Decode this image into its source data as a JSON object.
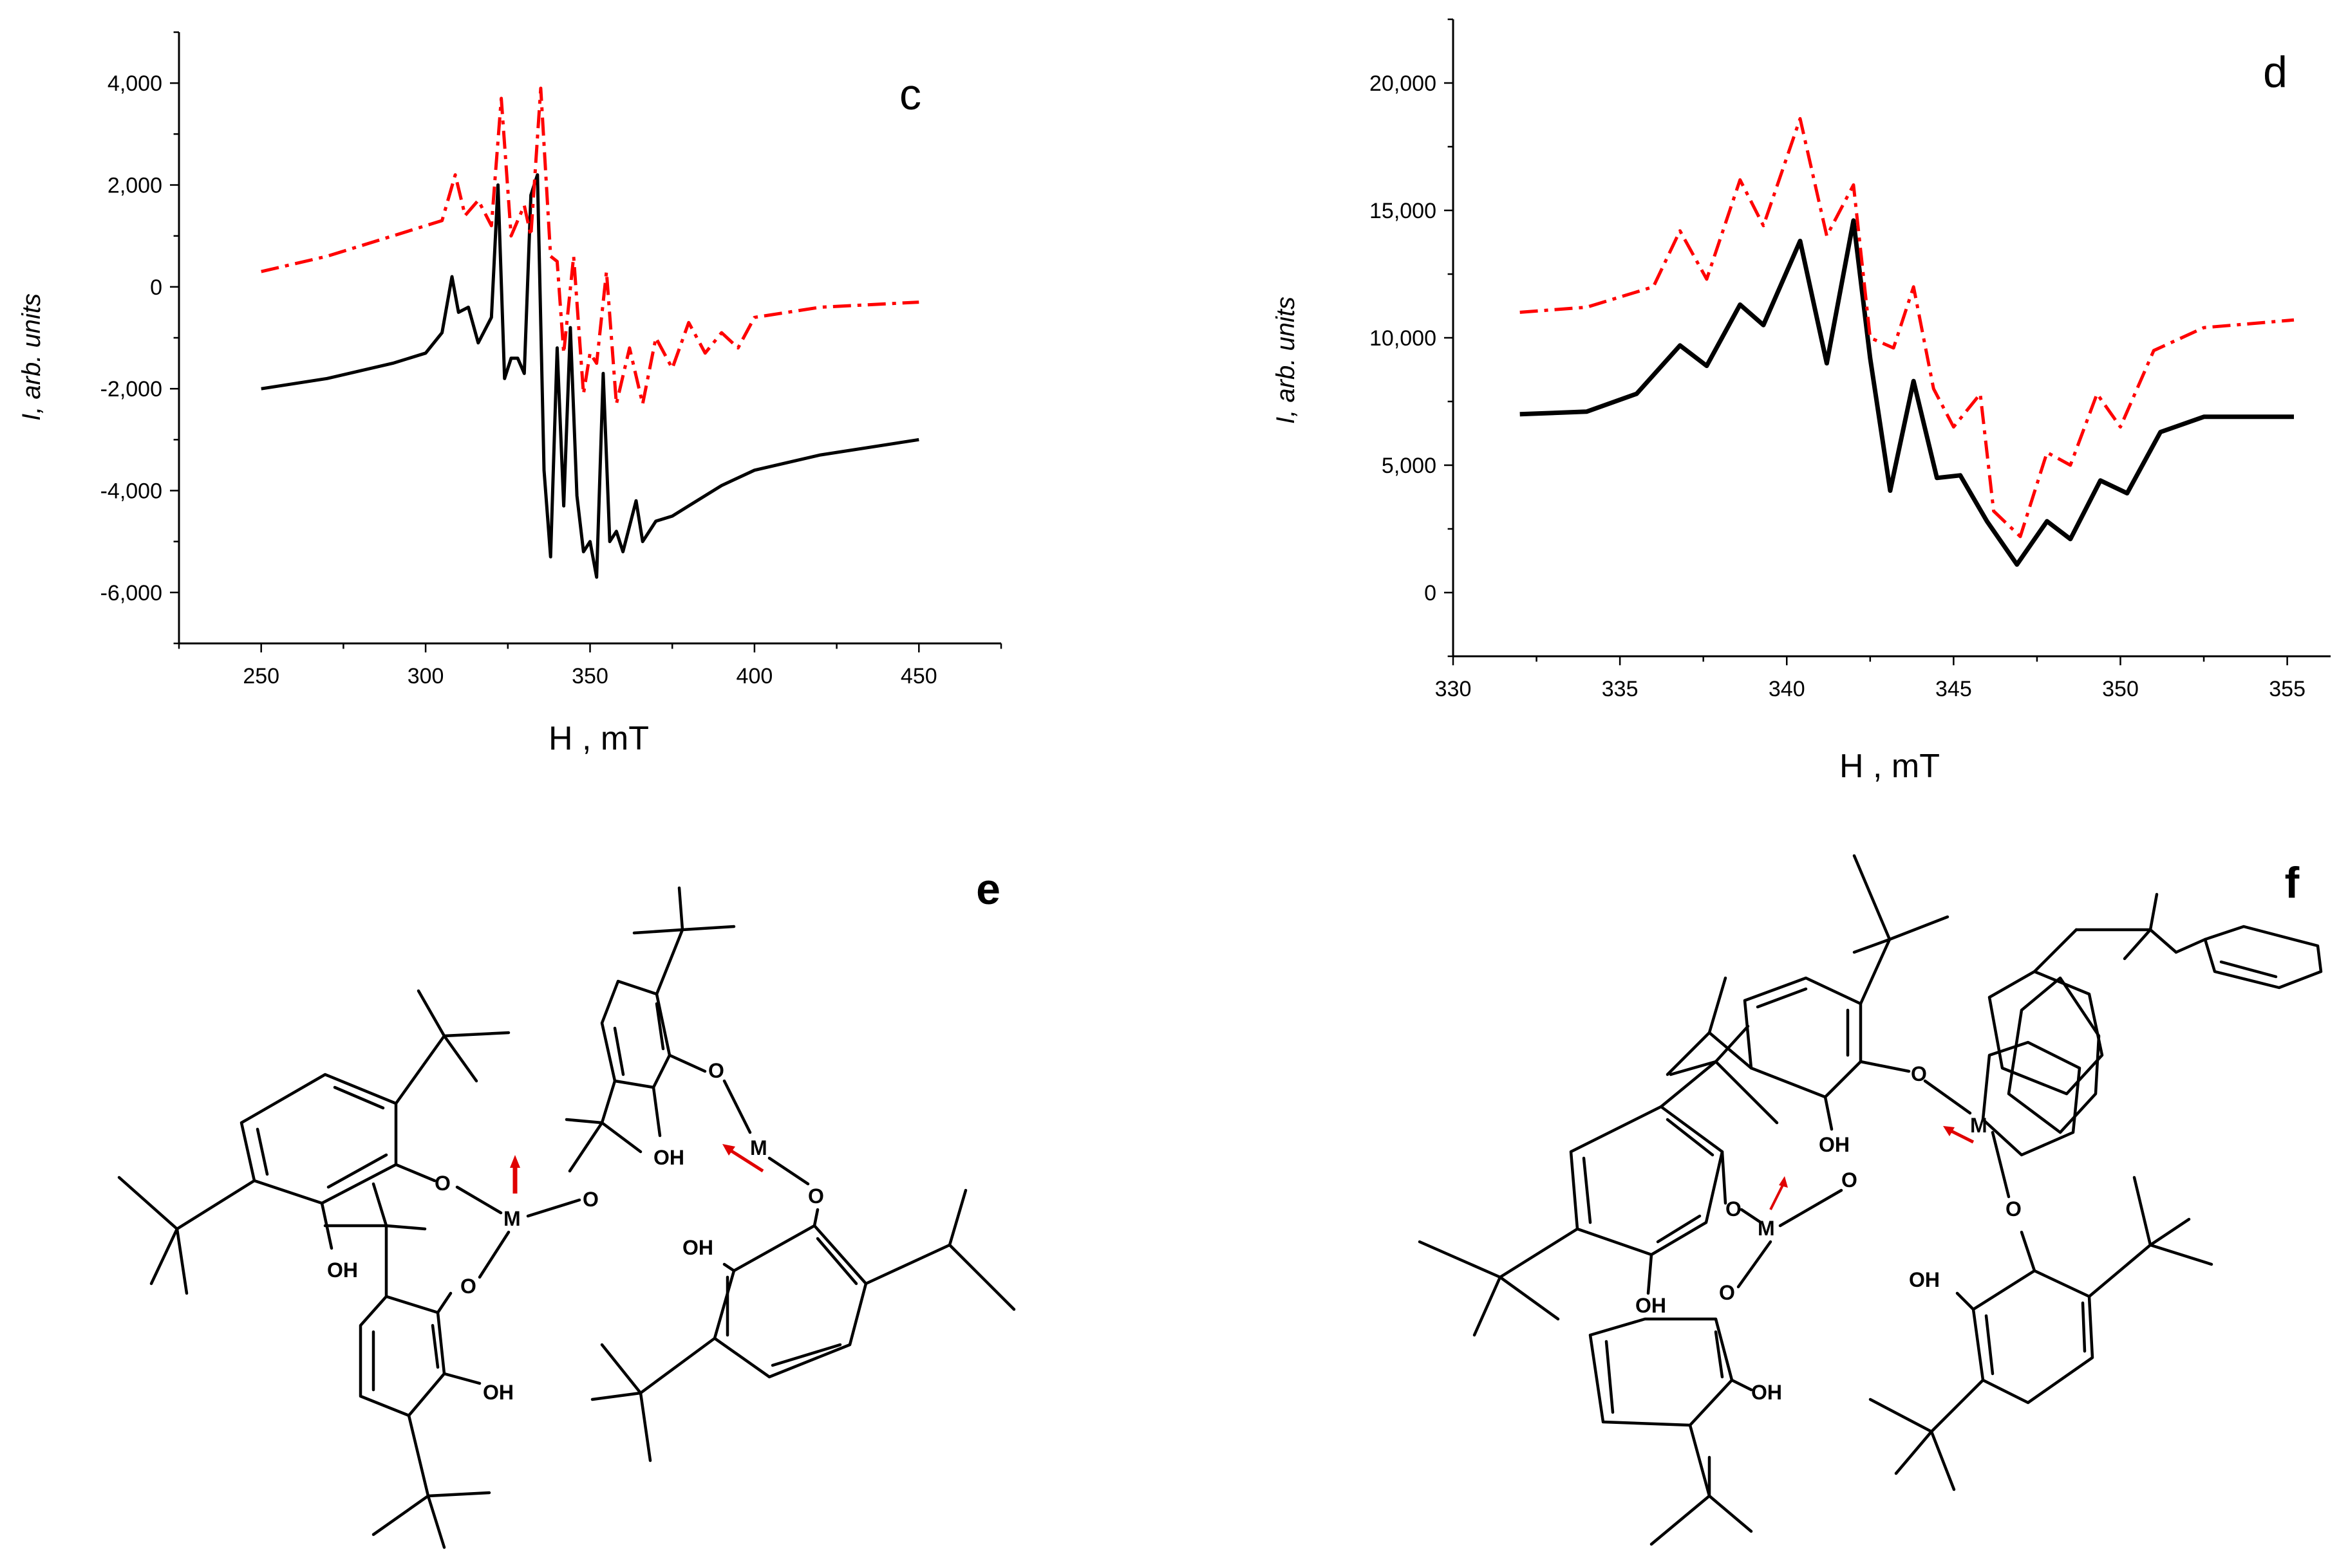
{
  "chart_data": [
    {
      "panel": "c",
      "type": "line",
      "xlabel": "H , mT",
      "ylabel": "I , arb. units",
      "xlim": [
        225,
        475
      ],
      "ylim": [
        -7000,
        5000
      ],
      "xticks": [
        250,
        300,
        350,
        400,
        450
      ],
      "yticks": [
        -6000,
        -4000,
        -2000,
        0,
        2000,
        4000
      ],
      "xtick_labels": [
        "250",
        "300",
        "350",
        "400",
        "450"
      ],
      "ytick_labels": [
        "-6,000",
        "-4,000",
        "-2,000",
        "0",
        "2,000",
        "4,000"
      ],
      "series": [
        {
          "name": "black solid",
          "style": "solid",
          "color": "#000000",
          "x": [
            250,
            270,
            290,
            300,
            305,
            308,
            310,
            313,
            316,
            320,
            322,
            324,
            326,
            328,
            330,
            332,
            334,
            336,
            338,
            340,
            342,
            344,
            346,
            348,
            350,
            352,
            354,
            356,
            358,
            360,
            362,
            364,
            366,
            370,
            375,
            380,
            390,
            400,
            420,
            450
          ],
          "y": [
            -2000,
            -1800,
            -1500,
            -1300,
            -900,
            200,
            -500,
            -400,
            -1100,
            -600,
            2000,
            -1800,
            -1400,
            -1400,
            -1700,
            1800,
            2200,
            -3600,
            -5300,
            -1200,
            -4300,
            -800,
            -4100,
            -5200,
            -5000,
            -5700,
            -1700,
            -5000,
            -4800,
            -5200,
            -4700,
            -4200,
            -5000,
            -4600,
            -4500,
            -4300,
            -3900,
            -3600,
            -3300,
            -3000
          ]
        },
        {
          "name": "red dash-dot",
          "style": "dashdot",
          "color": "#ff0000",
          "x": [
            250,
            270,
            290,
            300,
            305,
            309,
            312,
            316,
            320,
            323,
            326,
            330,
            332,
            335,
            338,
            340,
            342,
            345,
            348,
            350,
            352,
            355,
            358,
            362,
            366,
            370,
            375,
            380,
            385,
            390,
            395,
            400,
            420,
            450
          ],
          "y": [
            300,
            600,
            1000,
            1200,
            1300,
            2200,
            1400,
            1700,
            1200,
            3700,
            1000,
            1600,
            1000,
            3900,
            600,
            500,
            -1300,
            600,
            -2100,
            -1300,
            -1500,
            300,
            -2300,
            -1200,
            -2300,
            -1000,
            -1600,
            -700,
            -1300,
            -900,
            -1200,
            -600,
            -400,
            -300
          ]
        }
      ],
      "annotations": []
    },
    {
      "panel": "d",
      "type": "line",
      "xlabel": "H , mT",
      "ylabel": "I , arb. units",
      "xlim": [
        330,
        356.3
      ],
      "ylim": [
        -2500,
        22500
      ],
      "xticks": [
        330,
        335,
        340,
        345,
        350,
        355
      ],
      "yticks": [
        0,
        5000,
        10000,
        15000,
        20000
      ],
      "xtick_labels": [
        "330",
        "335",
        "340",
        "345",
        "350",
        "355"
      ],
      "ytick_labels": [
        "0",
        "5,000",
        "10,000",
        "15,000",
        "20,000"
      ],
      "series": [
        {
          "name": "black solid",
          "style": "solid",
          "color": "#000000",
          "x": [
            332,
            334,
            335.5,
            336.8,
            337.6,
            338.6,
            339.3,
            340.4,
            341.2,
            342.0,
            342.5,
            343.1,
            343.8,
            344.5,
            345.2,
            346.0,
            346.9,
            347.8,
            348.5,
            349.4,
            350.2,
            351.2,
            352.5,
            355.2
          ],
          "y": [
            7000,
            7100,
            7800,
            9700,
            8900,
            11300,
            10500,
            13800,
            9000,
            14600,
            9200,
            4000,
            8300,
            4500,
            4600,
            2800,
            1100,
            2800,
            2100,
            4400,
            3900,
            6300,
            6900,
            6900
          ]
        },
        {
          "name": "red dash-dot",
          "style": "dashdot",
          "color": "#ff0000",
          "x": [
            332,
            334,
            336,
            336.8,
            337.6,
            338.6,
            339.3,
            340.4,
            341.2,
            342.0,
            342.5,
            343.2,
            343.8,
            344.4,
            345.0,
            345.8,
            346.2,
            347.0,
            347.8,
            348.5,
            349.3,
            350.0,
            351.0,
            352.5,
            355.2
          ],
          "y": [
            11000,
            11200,
            12000,
            14200,
            12300,
            16200,
            14400,
            18600,
            14000,
            16000,
            10000,
            9600,
            12000,
            8000,
            6500,
            7800,
            3200,
            2200,
            5500,
            5000,
            7800,
            6500,
            9500,
            10400,
            10700
          ]
        }
      ],
      "annotations": []
    }
  ],
  "panels": {
    "c": {
      "letter": "c",
      "xlabel": "H , mT",
      "ylabel_var": "I",
      "ylabel_units": ", arb. units"
    },
    "d": {
      "letter": "d",
      "xlabel": "H , mT",
      "ylabel_var": "I",
      "ylabel_units": ", arb. units"
    },
    "e": {
      "letter": "e",
      "atoms": {
        "O": "O",
        "OH": "OH",
        "M": "M"
      }
    },
    "f": {
      "letter": "f",
      "atoms": {
        "O": "O",
        "OH": "OH",
        "M": "M"
      }
    }
  },
  "colors": {
    "accent_red": "#ff0000",
    "line_black": "#000000"
  }
}
